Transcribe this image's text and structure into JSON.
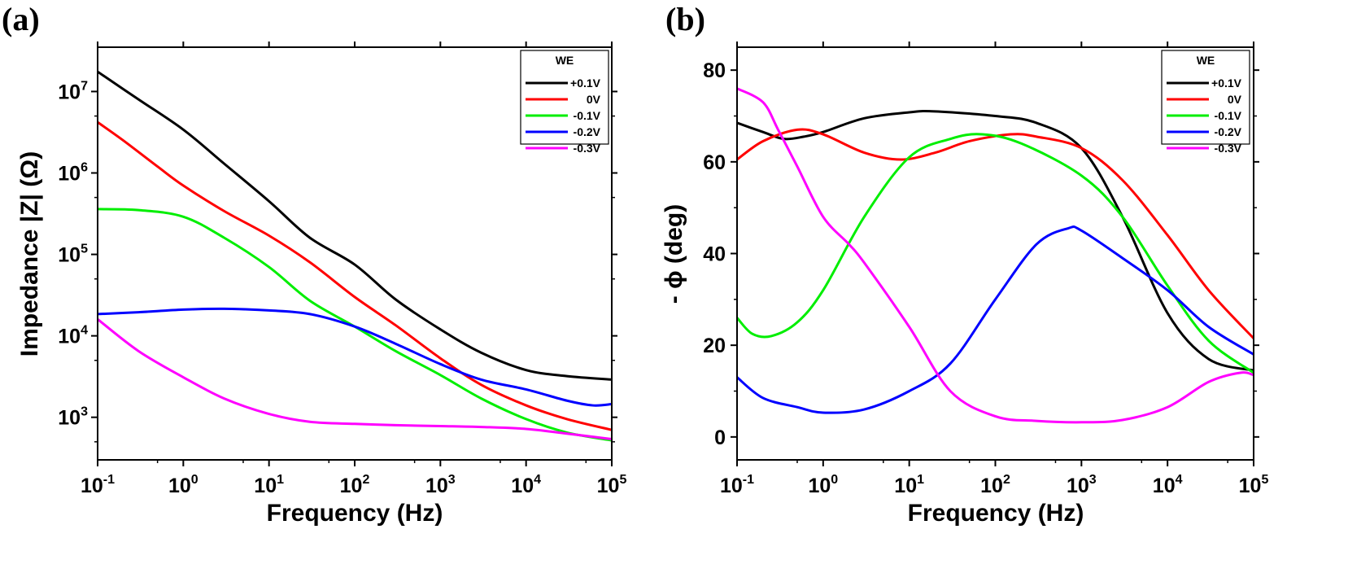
{
  "chart_data": [
    {
      "panel_label": "(a)",
      "type": "line",
      "xlabel": "Frequency (Hz)",
      "ylabel": "Impedance |Z| (Ω)",
      "x_scale": "log",
      "y_scale": "log",
      "xlim": [
        0.1,
        100000
      ],
      "ylim": [
        300,
        35000000
      ],
      "x_ticks": [
        {
          "base": "10",
          "exp": "-1",
          "value": 0.1
        },
        {
          "base": "10",
          "exp": "0",
          "value": 1
        },
        {
          "base": "10",
          "exp": "1",
          "value": 10
        },
        {
          "base": "10",
          "exp": "2",
          "value": 100
        },
        {
          "base": "10",
          "exp": "3",
          "value": 1000
        },
        {
          "base": "10",
          "exp": "4",
          "value": 10000
        },
        {
          "base": "10",
          "exp": "5",
          "value": 100000
        }
      ],
      "y_ticks": [
        {
          "base": "10",
          "exp": "3",
          "value": 1000
        },
        {
          "base": "10",
          "exp": "4",
          "value": 10000
        },
        {
          "base": "10",
          "exp": "5",
          "value": 100000
        },
        {
          "base": "10",
          "exp": "6",
          "value": 1000000
        },
        {
          "base": "10",
          "exp": "7",
          "value": 10000000
        }
      ],
      "legend": {
        "title": "WE",
        "placement": "top-right"
      },
      "series": [
        {
          "name": "+0.1V",
          "color": "#000000",
          "x": [
            0.1,
            0.3,
            1,
            3,
            10,
            30,
            100,
            300,
            1000,
            3000,
            10000,
            30000,
            100000
          ],
          "y": [
            17500000,
            8000000,
            3400000,
            1300000,
            450000,
            160000,
            75000,
            28000,
            12000,
            6200,
            3800,
            3200,
            2900
          ]
        },
        {
          "name": "0V",
          "color": "#ff0000",
          "x": [
            0.1,
            0.2,
            0.5,
            1,
            3,
            10,
            30,
            100,
            300,
            1000,
            3000,
            10000,
            30000,
            100000
          ],
          "y": [
            4200000,
            2500000,
            1200000,
            700000,
            340000,
            170000,
            80000,
            30000,
            13500,
            5300,
            2500,
            1400,
            950,
            700
          ]
        },
        {
          "name": "-0.1V",
          "color": "#00ee00",
          "x": [
            0.1,
            0.3,
            1,
            3,
            10,
            30,
            100,
            300,
            1000,
            3000,
            10000,
            30000,
            100000
          ],
          "y": [
            360000,
            350000,
            290000,
            160000,
            70000,
            27000,
            13000,
            6500,
            3300,
            1700,
            950,
            650,
            520
          ]
        },
        {
          "name": "-0.2V",
          "color": "#0000ff",
          "x": [
            0.1,
            0.3,
            1,
            3,
            10,
            30,
            100,
            300,
            1000,
            3000,
            10000,
            30000,
            60000,
            100000
          ],
          "y": [
            18500,
            19500,
            21000,
            21500,
            20500,
            18500,
            13000,
            8000,
            4500,
            2900,
            2200,
            1600,
            1400,
            1450
          ]
        },
        {
          "name": "-0.3V",
          "color": "#ff00ff",
          "x": [
            0.1,
            0.3,
            1,
            3,
            10,
            30,
            100,
            300,
            1000,
            3000,
            10000,
            30000,
            100000
          ],
          "y": [
            16000,
            6500,
            3100,
            1700,
            1100,
            880,
            830,
            800,
            780,
            760,
            720,
            630,
            540
          ]
        }
      ]
    },
    {
      "panel_label": "(b)",
      "type": "line",
      "xlabel": "Frequency (Hz)",
      "ylabel": "- ϕ (deg)",
      "x_scale": "log",
      "y_scale": "linear",
      "xlim": [
        0.1,
        100000
      ],
      "ylim": [
        -5,
        85
      ],
      "x_ticks": [
        {
          "base": "10",
          "exp": "-1",
          "value": 0.1
        },
        {
          "base": "10",
          "exp": "0",
          "value": 1
        },
        {
          "base": "10",
          "exp": "1",
          "value": 10
        },
        {
          "base": "10",
          "exp": "2",
          "value": 100
        },
        {
          "base": "10",
          "exp": "3",
          "value": 1000
        },
        {
          "base": "10",
          "exp": "4",
          "value": 10000
        },
        {
          "base": "10",
          "exp": "5",
          "value": 100000
        }
      ],
      "y_ticks": [
        {
          "label": "0",
          "value": 0
        },
        {
          "label": "20",
          "value": 20
        },
        {
          "label": "40",
          "value": 40
        },
        {
          "label": "60",
          "value": 60
        },
        {
          "label": "80",
          "value": 80
        }
      ],
      "legend": {
        "title": "WE",
        "placement": "top-right"
      },
      "series": [
        {
          "name": "+0.1V",
          "color": "#000000",
          "x": [
            0.1,
            0.2,
            0.35,
            0.6,
            1,
            3,
            10,
            20,
            100,
            300,
            1000,
            3000,
            10000,
            30000,
            100000
          ],
          "y": [
            68.5,
            66.5,
            65,
            65.5,
            66.5,
            69.5,
            70.8,
            71,
            70,
            68.5,
            63,
            48,
            27,
            17,
            14.5
          ]
        },
        {
          "name": "0V",
          "color": "#ff0000",
          "x": [
            0.1,
            0.2,
            0.5,
            1,
            3,
            8,
            20,
            50,
            150,
            300,
            1000,
            3000,
            10000,
            30000,
            100000
          ],
          "y": [
            60.5,
            64.5,
            67,
            66,
            62,
            60.5,
            62,
            64.5,
            66,
            65.5,
            63,
            56,
            44,
            32,
            21.5
          ]
        },
        {
          "name": "-0.1V",
          "color": "#00ee00",
          "x": [
            0.1,
            0.15,
            0.25,
            0.5,
            1,
            3,
            10,
            30,
            70,
            200,
            1000,
            3000,
            10000,
            30000,
            100000
          ],
          "y": [
            26,
            22.5,
            22,
            25,
            32,
            48,
            61,
            65,
            66,
            64,
            57,
            48,
            33,
            21,
            14
          ]
        },
        {
          "name": "-0.2V",
          "color": "#0000ff",
          "x": [
            0.1,
            0.2,
            0.5,
            1,
            3,
            10,
            30,
            100,
            300,
            700,
            1000,
            3000,
            10000,
            30000,
            100000
          ],
          "y": [
            13,
            8.5,
            6.5,
            5.3,
            6,
            10,
            16,
            30,
            42,
            45.5,
            45,
            39,
            32,
            24,
            18
          ]
        },
        {
          "name": "-0.3V",
          "color": "#ff00ff",
          "x": [
            0.1,
            0.2,
            0.3,
            0.5,
            1,
            2,
            3,
            10,
            30,
            100,
            300,
            1000,
            3000,
            10000,
            30000,
            70000,
            100000
          ],
          "y": [
            76,
            73,
            67,
            59,
            48,
            42,
            38,
            24,
            10,
            4.5,
            3.5,
            3.2,
            3.7,
            6.5,
            12,
            14,
            13.5
          ]
        }
      ]
    }
  ]
}
